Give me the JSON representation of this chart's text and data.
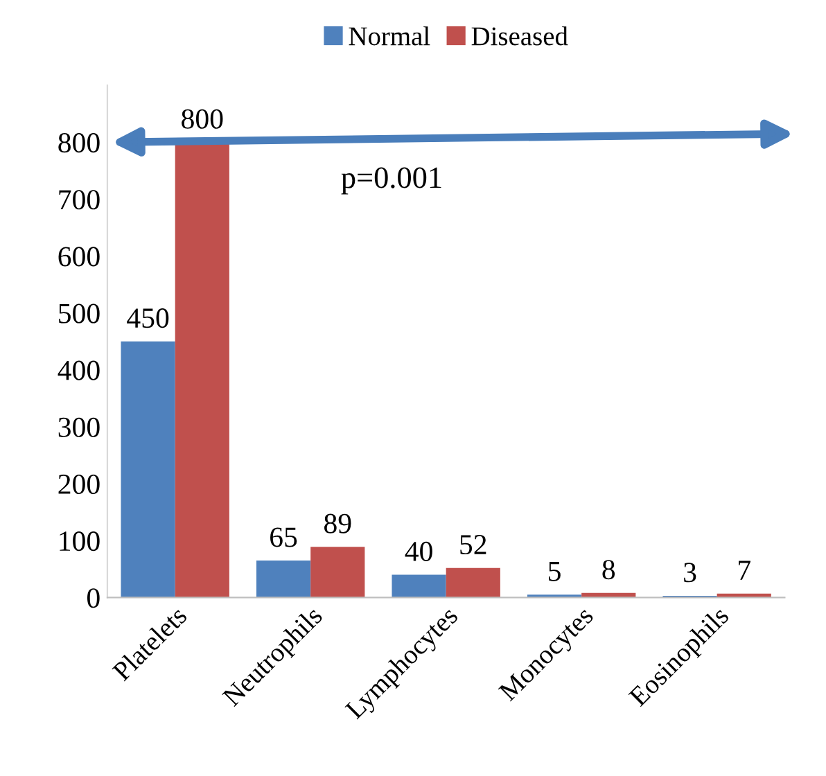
{
  "chart_data": {
    "type": "bar",
    "categories": [
      "Platelets",
      "Neutrophils",
      "Lymphocytes",
      "Monocytes",
      "Eosinophils"
    ],
    "series": [
      {
        "name": "Normal",
        "color": "#4f81bd",
        "values": [
          450,
          65,
          40,
          5,
          3
        ]
      },
      {
        "name": "Diseased",
        "color": "#c0504d",
        "values": [
          800,
          89,
          52,
          8,
          7
        ]
      }
    ],
    "ylim": [
      0,
      900
    ],
    "yticks": [
      0,
      100,
      200,
      300,
      400,
      500,
      600,
      700,
      800
    ],
    "data_labels": true,
    "legend": "top",
    "grid": false,
    "annotations": [
      "p=0.001"
    ]
  }
}
